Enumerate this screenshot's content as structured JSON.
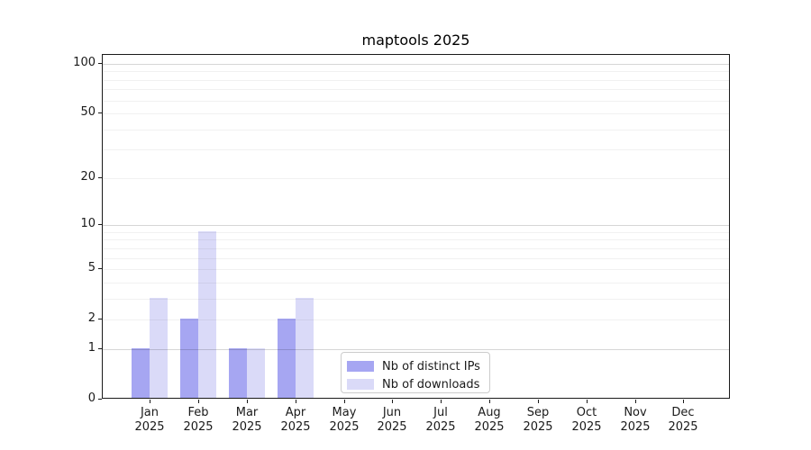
{
  "chart_data": {
    "type": "bar",
    "title": "maptools 2025",
    "categories": [
      "Jan",
      "Feb",
      "Mar",
      "Apr",
      "May",
      "Jun",
      "Jul",
      "Aug",
      "Sep",
      "Oct",
      "Nov",
      "Dec"
    ],
    "category_year": "2025",
    "series": [
      {
        "name": "Nb of distinct IPs",
        "color": "#a6a6f2",
        "values": [
          1,
          2,
          1,
          2,
          0,
          0,
          0,
          0,
          0,
          0,
          0,
          0
        ]
      },
      {
        "name": "Nb of downloads",
        "color": "#dadaf8",
        "values": [
          3,
          9,
          1,
          3,
          0,
          0,
          0,
          0,
          0,
          0,
          0,
          0
        ]
      }
    ],
    "xlabel": "",
    "ylabel": "",
    "yscale": "log1p",
    "ylim": [
      0,
      113
    ],
    "yticks": [
      0,
      1,
      2,
      5,
      10,
      20,
      50,
      100
    ],
    "gridlines": {
      "major": [
        1,
        10,
        100
      ],
      "minor": [
        2,
        3,
        4,
        5,
        6,
        7,
        8,
        9,
        20,
        30,
        40,
        50,
        60,
        70,
        80,
        90
      ]
    },
    "legend": {
      "position": "lower center-left inside plot"
    },
    "colors": {
      "spine": "#1a1a1a",
      "major_grid": "rgba(0,0,0,0.16)",
      "minor_grid": "rgba(0,0,0,0.055)",
      "background": "#ffffff"
    }
  }
}
